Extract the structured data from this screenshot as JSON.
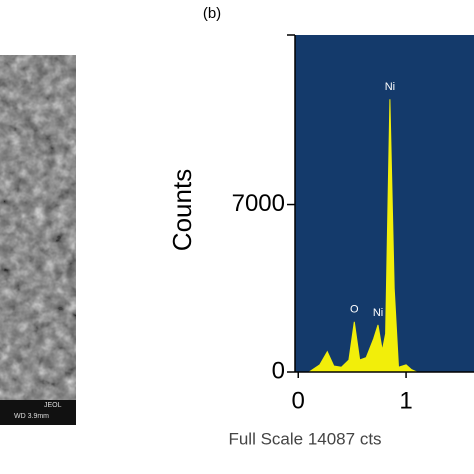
{
  "panel_a": {
    "labels": [
      "JEOL",
      "WD 3.9mm"
    ]
  },
  "panel_b_label": "(b)",
  "chart_data": {
    "type": "area",
    "ylabel": "Counts",
    "xlabel": "Full Scale 14087 cts",
    "x": [
      0.1,
      0.2,
      0.27,
      0.33,
      0.4,
      0.47,
      0.52,
      0.57,
      0.63,
      0.7,
      0.74,
      0.78,
      0.81,
      0.85,
      0.89,
      0.93,
      1.0,
      1.05,
      1.1,
      1.3,
      1.6
    ],
    "values": [
      0,
      300,
      850,
      250,
      200,
      500,
      2100,
      500,
      600,
      1400,
      1970,
      900,
      1600,
      11400,
      3500,
      200,
      300,
      100,
      0,
      0,
      0
    ],
    "color": "#f2ee0a",
    "background": "#143a6b",
    "xlim": [
      -0.03,
      1.63
    ],
    "ylim": [
      0,
      14087
    ],
    "xticks": [
      0,
      1
    ],
    "yticks": [
      0,
      7000
    ],
    "annotations": [
      {
        "text": "Ni",
        "x": 0.85,
        "y": 11400
      },
      {
        "text": "O",
        "x": 0.52,
        "y": 2100
      },
      {
        "text": "Ni",
        "x": 0.74,
        "y": 1970
      }
    ]
  }
}
